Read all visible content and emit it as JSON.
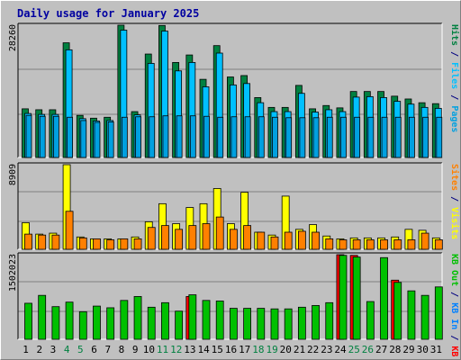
{
  "title": "Daily usage for January 2025",
  "colors": {
    "hits": "#008040",
    "files": "#00c0ff",
    "pages": "#00a0e0",
    "visits": "#ffff00",
    "sites": "#ff8000",
    "kb_f": "#ff0000",
    "kb_in": "#0080ff",
    "kb_out": "#00c000",
    "panel": "#c0c0c0",
    "grid": "#808080",
    "weekend": "#008040",
    "weekday": "#000080"
  },
  "chart_data": [
    {
      "type": "bar",
      "panel": "top",
      "ymax_label": "28260",
      "ymax": 28260,
      "right_legend": [
        {
          "text": "Pages",
          "color_key": "pages"
        },
        {
          "text": " / ",
          "color_key": "weekday"
        },
        {
          "text": "Files",
          "color_key": "files"
        },
        {
          "text": " / ",
          "color_key": "weekday"
        },
        {
          "text": "Hits",
          "color_key": "hits"
        }
      ],
      "series": [
        {
          "name": "Hits",
          "values": [
            10400,
            10200,
            10200,
            24500,
            9000,
            8400,
            8600,
            28260,
            9800,
            22100,
            28200,
            20300,
            21900,
            16700,
            23900,
            17200,
            17500,
            12800,
            10700,
            10700,
            15400,
            10400,
            11100,
            10600,
            14100,
            14100,
            14100,
            13100,
            12500,
            11700,
            11500
          ]
        },
        {
          "name": "Files",
          "values": [
            9400,
            9200,
            9200,
            23000,
            8300,
            7800,
            7900,
            27200,
            9100,
            20100,
            27000,
            18500,
            20300,
            15100,
            22300,
            15500,
            15800,
            11700,
            9800,
            9800,
            13700,
            9700,
            10200,
            9800,
            12900,
            13000,
            12800,
            12000,
            11400,
            10700,
            10500
          ]
        },
        {
          "name": "Pages",
          "values": [
            9000,
            8800,
            8800,
            8600,
            7900,
            7500,
            7600,
            8600,
            8700,
            8700,
            8900,
            8900,
            8900,
            8800,
            8600,
            8700,
            8700,
            8700,
            8600,
            8500,
            8500,
            8500,
            8600,
            8600,
            8600,
            8600,
            8600,
            8600,
            8600,
            8600,
            8600
          ]
        }
      ]
    },
    {
      "type": "bar",
      "panel": "middle",
      "ymax_label": "8909",
      "ymax": 8909,
      "right_legend": [
        {
          "text": "Visits",
          "color_key": "visits"
        },
        {
          "text": " / ",
          "color_key": "weekday"
        },
        {
          "text": "Sites",
          "color_key": "sites"
        }
      ],
      "series": [
        {
          "name": "Visits",
          "values": [
            2800,
            1600,
            1700,
            8909,
            1300,
            1100,
            1100,
            1100,
            1300,
            2900,
            4800,
            2700,
            4400,
            4800,
            6400,
            2700,
            6000,
            1800,
            1500,
            5600,
            2100,
            2600,
            1400,
            1100,
            1200,
            1200,
            1200,
            1300,
            2100,
            2000,
            1200
          ]
        },
        {
          "name": "Sites",
          "values": [
            1600,
            1500,
            1500,
            4000,
            1200,
            1100,
            1000,
            1100,
            1100,
            2300,
            2500,
            2100,
            2500,
            2700,
            3400,
            2100,
            2500,
            1800,
            1300,
            1800,
            1900,
            1800,
            1100,
            1000,
            1000,
            1000,
            1000,
            1000,
            1000,
            1700,
            1000
          ]
        }
      ]
    },
    {
      "type": "bar",
      "panel": "bottom",
      "ymax_label": "1502023",
      "ymax": 1502023,
      "right_legend": [
        {
          "text": "KB F",
          "color_key": "kb_f"
        },
        {
          "text": " / ",
          "color_key": "weekday"
        },
        {
          "text": "KB In",
          "color_key": "kb_in"
        },
        {
          "text": " / ",
          "color_key": "weekday"
        },
        {
          "text": "KB Out",
          "color_key": "kb_out"
        }
      ],
      "series": [
        {
          "name": "KB F",
          "values": [
            0,
            0,
            0,
            0,
            0,
            0,
            0,
            0,
            0,
            0,
            0,
            0,
            760000,
            0,
            0,
            0,
            0,
            0,
            0,
            0,
            0,
            0,
            0,
            1502023,
            1490000,
            0,
            0,
            1050000,
            0,
            0,
            0
          ]
        },
        {
          "name": "KB In",
          "values": [
            0,
            0,
            0,
            0,
            0,
            0,
            0,
            0,
            0,
            0,
            0,
            0,
            0,
            0,
            0,
            0,
            0,
            0,
            0,
            0,
            0,
            0,
            0,
            0,
            0,
            0,
            0,
            0,
            0,
            0,
            0
          ]
        },
        {
          "name": "KB Out",
          "values": [
            640000,
            780000,
            580000,
            660000,
            490000,
            590000,
            560000,
            690000,
            760000,
            570000,
            650000,
            500000,
            790000,
            690000,
            680000,
            550000,
            550000,
            550000,
            540000,
            540000,
            570000,
            600000,
            650000,
            1490000,
            1460000,
            670000,
            1450000,
            1010000,
            860000,
            780000,
            930000
          ]
        }
      ]
    }
  ],
  "x_axis": {
    "labels": [
      "1",
      "2",
      "3",
      "4",
      "5",
      "6",
      "7",
      "8",
      "9",
      "10",
      "11",
      "12",
      "13",
      "14",
      "15",
      "16",
      "17",
      "18",
      "19",
      "20",
      "21",
      "22",
      "23",
      "24",
      "25",
      "26",
      "27",
      "28",
      "29",
      "30",
      "31"
    ],
    "weekend_days": [
      4,
      5,
      11,
      12,
      18,
      19,
      25,
      26
    ]
  }
}
